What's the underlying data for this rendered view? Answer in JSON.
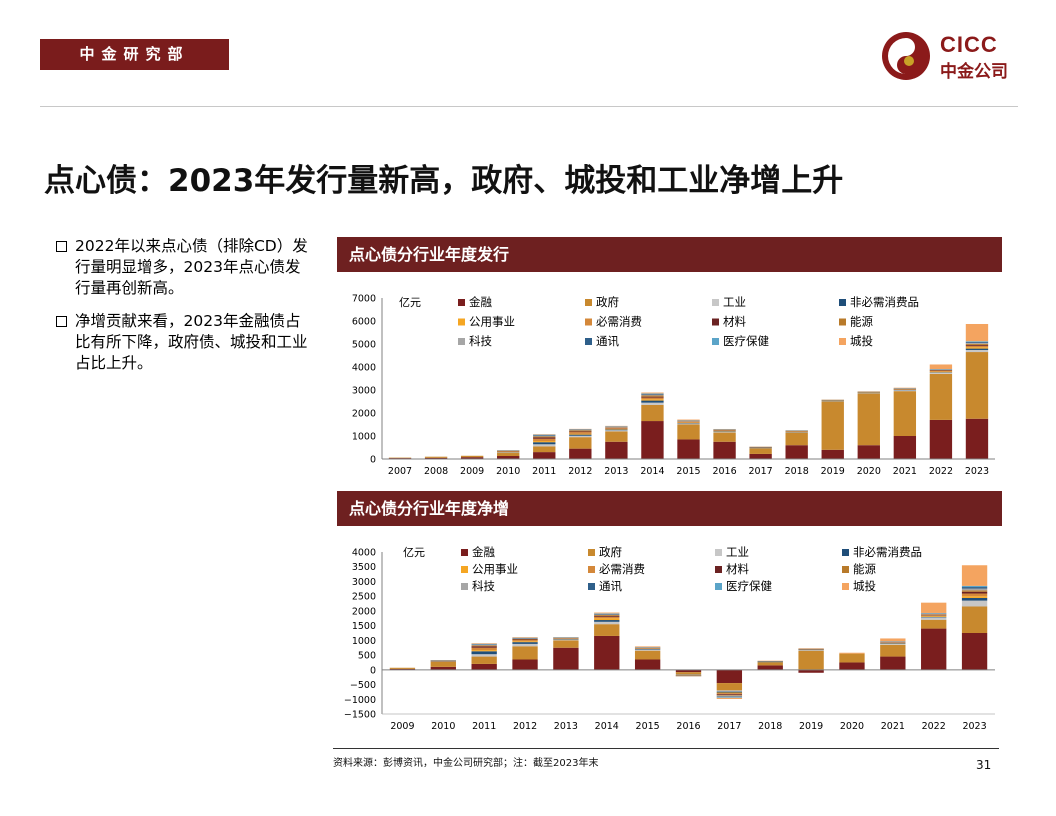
{
  "header": {
    "department": "中金研究部",
    "logo_text": "CICC",
    "logo_cn": "中金公司"
  },
  "page_title": "点心债：2023年发行量新高，政府、城投和工业净增上升",
  "bullets": [
    "2022年以来点心债（排除CD）发行量明显增多，2023年点心债发行量再创新高。",
    "净增贡献来看，2023年金融债占比有所下降，政府债、城投和工业占比上升。"
  ],
  "footer": {
    "source": "资料来源：彭博资讯，中金公司研究部；注：截至2023年末",
    "page_number": "31"
  },
  "colors": {
    "金融": "#7a1e1e",
    "政府": "#c8892e",
    "工业": "#c7c7c7",
    "非必需消费品": "#1f4e79",
    "公用事业": "#f5a623",
    "必需消费": "#d4883a",
    "材料": "#6b2222",
    "能源": "#b87a2a",
    "科技": "#a6a6a6",
    "通讯": "#2e5f8a",
    "医疗保健": "#5ba4c8",
    "城投": "#f4a460"
  },
  "chart_data": [
    {
      "type": "bar",
      "stacked": true,
      "title": "点心债分行业年度发行",
      "unit": "亿元",
      "ylim": [
        0,
        7000
      ],
      "yticks": [
        0,
        1000,
        2000,
        3000,
        4000,
        5000,
        6000,
        7000
      ],
      "legend_placement": "top",
      "categories": [
        "2007",
        "2008",
        "2009",
        "2010",
        "2011",
        "2012",
        "2013",
        "2014",
        "2015",
        "2016",
        "2017",
        "2018",
        "2019",
        "2020",
        "2021",
        "2022",
        "2023"
      ],
      "series": [
        {
          "name": "金融",
          "values": [
            40,
            50,
            80,
            130,
            300,
            450,
            750,
            1650,
            850,
            750,
            220,
            600,
            400,
            600,
            1000,
            1700,
            1750
          ]
        },
        {
          "name": "政府",
          "values": [
            20,
            50,
            60,
            130,
            250,
            500,
            450,
            700,
            650,
            400,
            250,
            550,
            2100,
            2250,
            1950,
            2000,
            2900
          ]
        },
        {
          "name": "工业",
          "values": [
            0,
            0,
            0,
            20,
            90,
            60,
            50,
            100,
            40,
            30,
            10,
            20,
            20,
            20,
            40,
            50,
            90
          ]
        },
        {
          "name": "非必需消费品",
          "values": [
            0,
            0,
            0,
            10,
            90,
            50,
            30,
            90,
            20,
            20,
            5,
            10,
            10,
            10,
            20,
            20,
            60
          ]
        },
        {
          "name": "公用事业",
          "values": [
            0,
            0,
            0,
            10,
            50,
            30,
            20,
            60,
            20,
            15,
            5,
            10,
            10,
            10,
            10,
            30,
            60
          ]
        },
        {
          "name": "必需消费",
          "values": [
            0,
            0,
            0,
            30,
            100,
            80,
            40,
            70,
            30,
            20,
            10,
            10,
            10,
            10,
            10,
            30,
            60
          ]
        },
        {
          "name": "材料",
          "values": [
            0,
            0,
            0,
            10,
            60,
            30,
            20,
            40,
            10,
            10,
            5,
            10,
            5,
            5,
            10,
            20,
            40
          ]
        },
        {
          "name": "能源",
          "values": [
            0,
            0,
            0,
            15,
            40,
            40,
            20,
            50,
            20,
            20,
            10,
            10,
            5,
            5,
            10,
            20,
            50
          ]
        },
        {
          "name": "科技",
          "values": [
            0,
            0,
            0,
            10,
            30,
            20,
            20,
            40,
            20,
            10,
            5,
            10,
            5,
            5,
            10,
            20,
            40
          ]
        },
        {
          "name": "通讯",
          "values": [
            0,
            0,
            0,
            5,
            30,
            20,
            10,
            30,
            10,
            5,
            5,
            5,
            5,
            5,
            5,
            10,
            40
          ]
        },
        {
          "name": "医疗保健",
          "values": [
            0,
            0,
            0,
            5,
            20,
            10,
            10,
            20,
            5,
            5,
            5,
            5,
            5,
            5,
            5,
            10,
            30
          ]
        },
        {
          "name": "城投",
          "values": [
            0,
            0,
            0,
            5,
            20,
            20,
            20,
            40,
            40,
            20,
            10,
            10,
            10,
            20,
            30,
            200,
            750
          ]
        }
      ]
    },
    {
      "type": "bar",
      "stacked": true,
      "title": "点心债分行业年度净增",
      "unit": "亿元",
      "ylim": [
        -1500,
        4000
      ],
      "yticks": [
        -1500,
        -1000,
        -500,
        0,
        500,
        1000,
        1500,
        2000,
        2500,
        3000,
        3500,
        4000
      ],
      "legend_placement": "top",
      "categories": [
        "2009",
        "2010",
        "2011",
        "2012",
        "2013",
        "2014",
        "2015",
        "2016",
        "2017",
        "2018",
        "2019",
        "2020",
        "2021",
        "2022",
        "2023"
      ],
      "series": [
        {
          "name": "金融",
          "values": [
            30,
            100,
            200,
            350,
            750,
            1150,
            350,
            -80,
            -450,
            150,
            -100,
            250,
            450,
            1400,
            1250
          ]
        },
        {
          "name": "政府",
          "values": [
            40,
            170,
            250,
            450,
            250,
            400,
            300,
            -80,
            -250,
            100,
            650,
            300,
            400,
            300,
            900
          ]
        },
        {
          "name": "工业",
          "values": [
            0,
            10,
            80,
            80,
            20,
            80,
            40,
            -10,
            -40,
            10,
            20,
            0,
            30,
            80,
            200
          ]
        },
        {
          "name": "非必需消费品",
          "values": [
            0,
            5,
            100,
            60,
            20,
            60,
            20,
            -10,
            -30,
            5,
            10,
            0,
            20,
            20,
            90
          ]
        },
        {
          "name": "公用事业",
          "values": [
            0,
            5,
            40,
            30,
            10,
            60,
            10,
            -5,
            -20,
            5,
            5,
            0,
            10,
            30,
            60
          ]
        },
        {
          "name": "必需消费",
          "values": [
            0,
            10,
            80,
            40,
            10,
            50,
            10,
            -5,
            -40,
            5,
            5,
            0,
            10,
            20,
            90
          ]
        },
        {
          "name": "材料",
          "values": [
            0,
            5,
            50,
            20,
            10,
            30,
            5,
            -5,
            -30,
            5,
            5,
            0,
            10,
            20,
            60
          ]
        },
        {
          "name": "能源",
          "values": [
            0,
            5,
            30,
            20,
            10,
            30,
            10,
            -5,
            -20,
            5,
            5,
            0,
            10,
            20,
            50
          ]
        },
        {
          "name": "科技",
          "values": [
            0,
            5,
            20,
            15,
            10,
            20,
            10,
            -5,
            -30,
            5,
            5,
            0,
            10,
            20,
            60
          ]
        },
        {
          "name": "通讯",
          "values": [
            0,
            5,
            20,
            15,
            5,
            20,
            5,
            -5,
            -20,
            5,
            5,
            0,
            10,
            10,
            50
          ]
        },
        {
          "name": "医疗保健",
          "values": [
            0,
            5,
            15,
            10,
            5,
            15,
            5,
            -5,
            -20,
            5,
            5,
            0,
            5,
            10,
            40
          ]
        },
        {
          "name": "城投",
          "values": [
            0,
            5,
            20,
            20,
            10,
            30,
            30,
            -10,
            -40,
            10,
            20,
            30,
            100,
            350,
            700
          ]
        }
      ]
    }
  ]
}
